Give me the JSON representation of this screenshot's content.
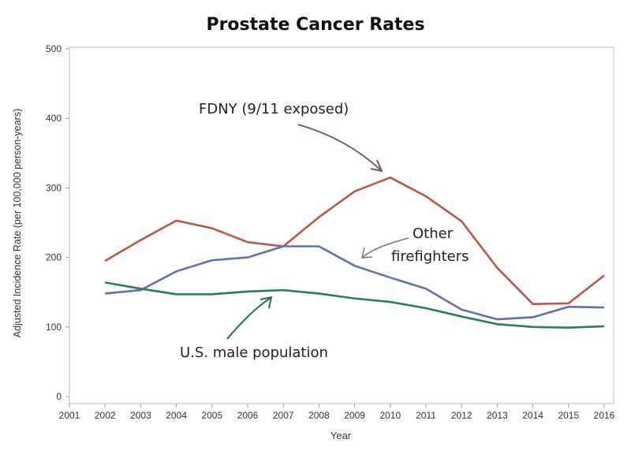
{
  "chart_data": {
    "type": "line",
    "title": "Prostate Cancer Rates",
    "xlabel": "Year",
    "ylabel": "Adjusted Incidence Rate (per 100,000 person-years)",
    "ylim": [
      0,
      500
    ],
    "xlim": [
      2001,
      2016
    ],
    "grid": false,
    "x": [
      2002,
      2003,
      2004,
      2005,
      2006,
      2007,
      2008,
      2009,
      2010,
      2011,
      2012,
      2013,
      2014,
      2015,
      2016
    ],
    "xticks": [
      "2001",
      "2002",
      "2003",
      "2004",
      "2005",
      "2006",
      "2007",
      "2008",
      "2009",
      "2010",
      "2011",
      "2012",
      "2013",
      "2014",
      "2015",
      "2016"
    ],
    "yticks": [
      "0",
      "100",
      "200",
      "300",
      "400",
      "500"
    ],
    "series": [
      {
        "name": "FDNY (9/11 exposed)",
        "color": "#b5574a",
        "values": [
          195,
          225,
          253,
          242,
          222,
          216,
          258,
          295,
          315,
          288,
          252,
          185,
          133,
          134,
          174
        ]
      },
      {
        "name": "Other firefighters",
        "color": "#6670a8",
        "values": [
          148,
          153,
          180,
          196,
          200,
          216,
          216,
          188,
          171,
          155,
          125,
          111,
          114,
          129,
          128
        ]
      },
      {
        "name": "U.S. male population",
        "color": "#2a7a68",
        "values": [
          164,
          155,
          147,
          147,
          151,
          153,
          148,
          141,
          136,
          127,
          115,
          104,
          100,
          99,
          101
        ]
      }
    ],
    "annotations": {
      "fdny": "FDNY (9/11 exposed)",
      "other_line1": "Other",
      "other_line2": "firefighters",
      "us": "U.S. male population"
    }
  }
}
